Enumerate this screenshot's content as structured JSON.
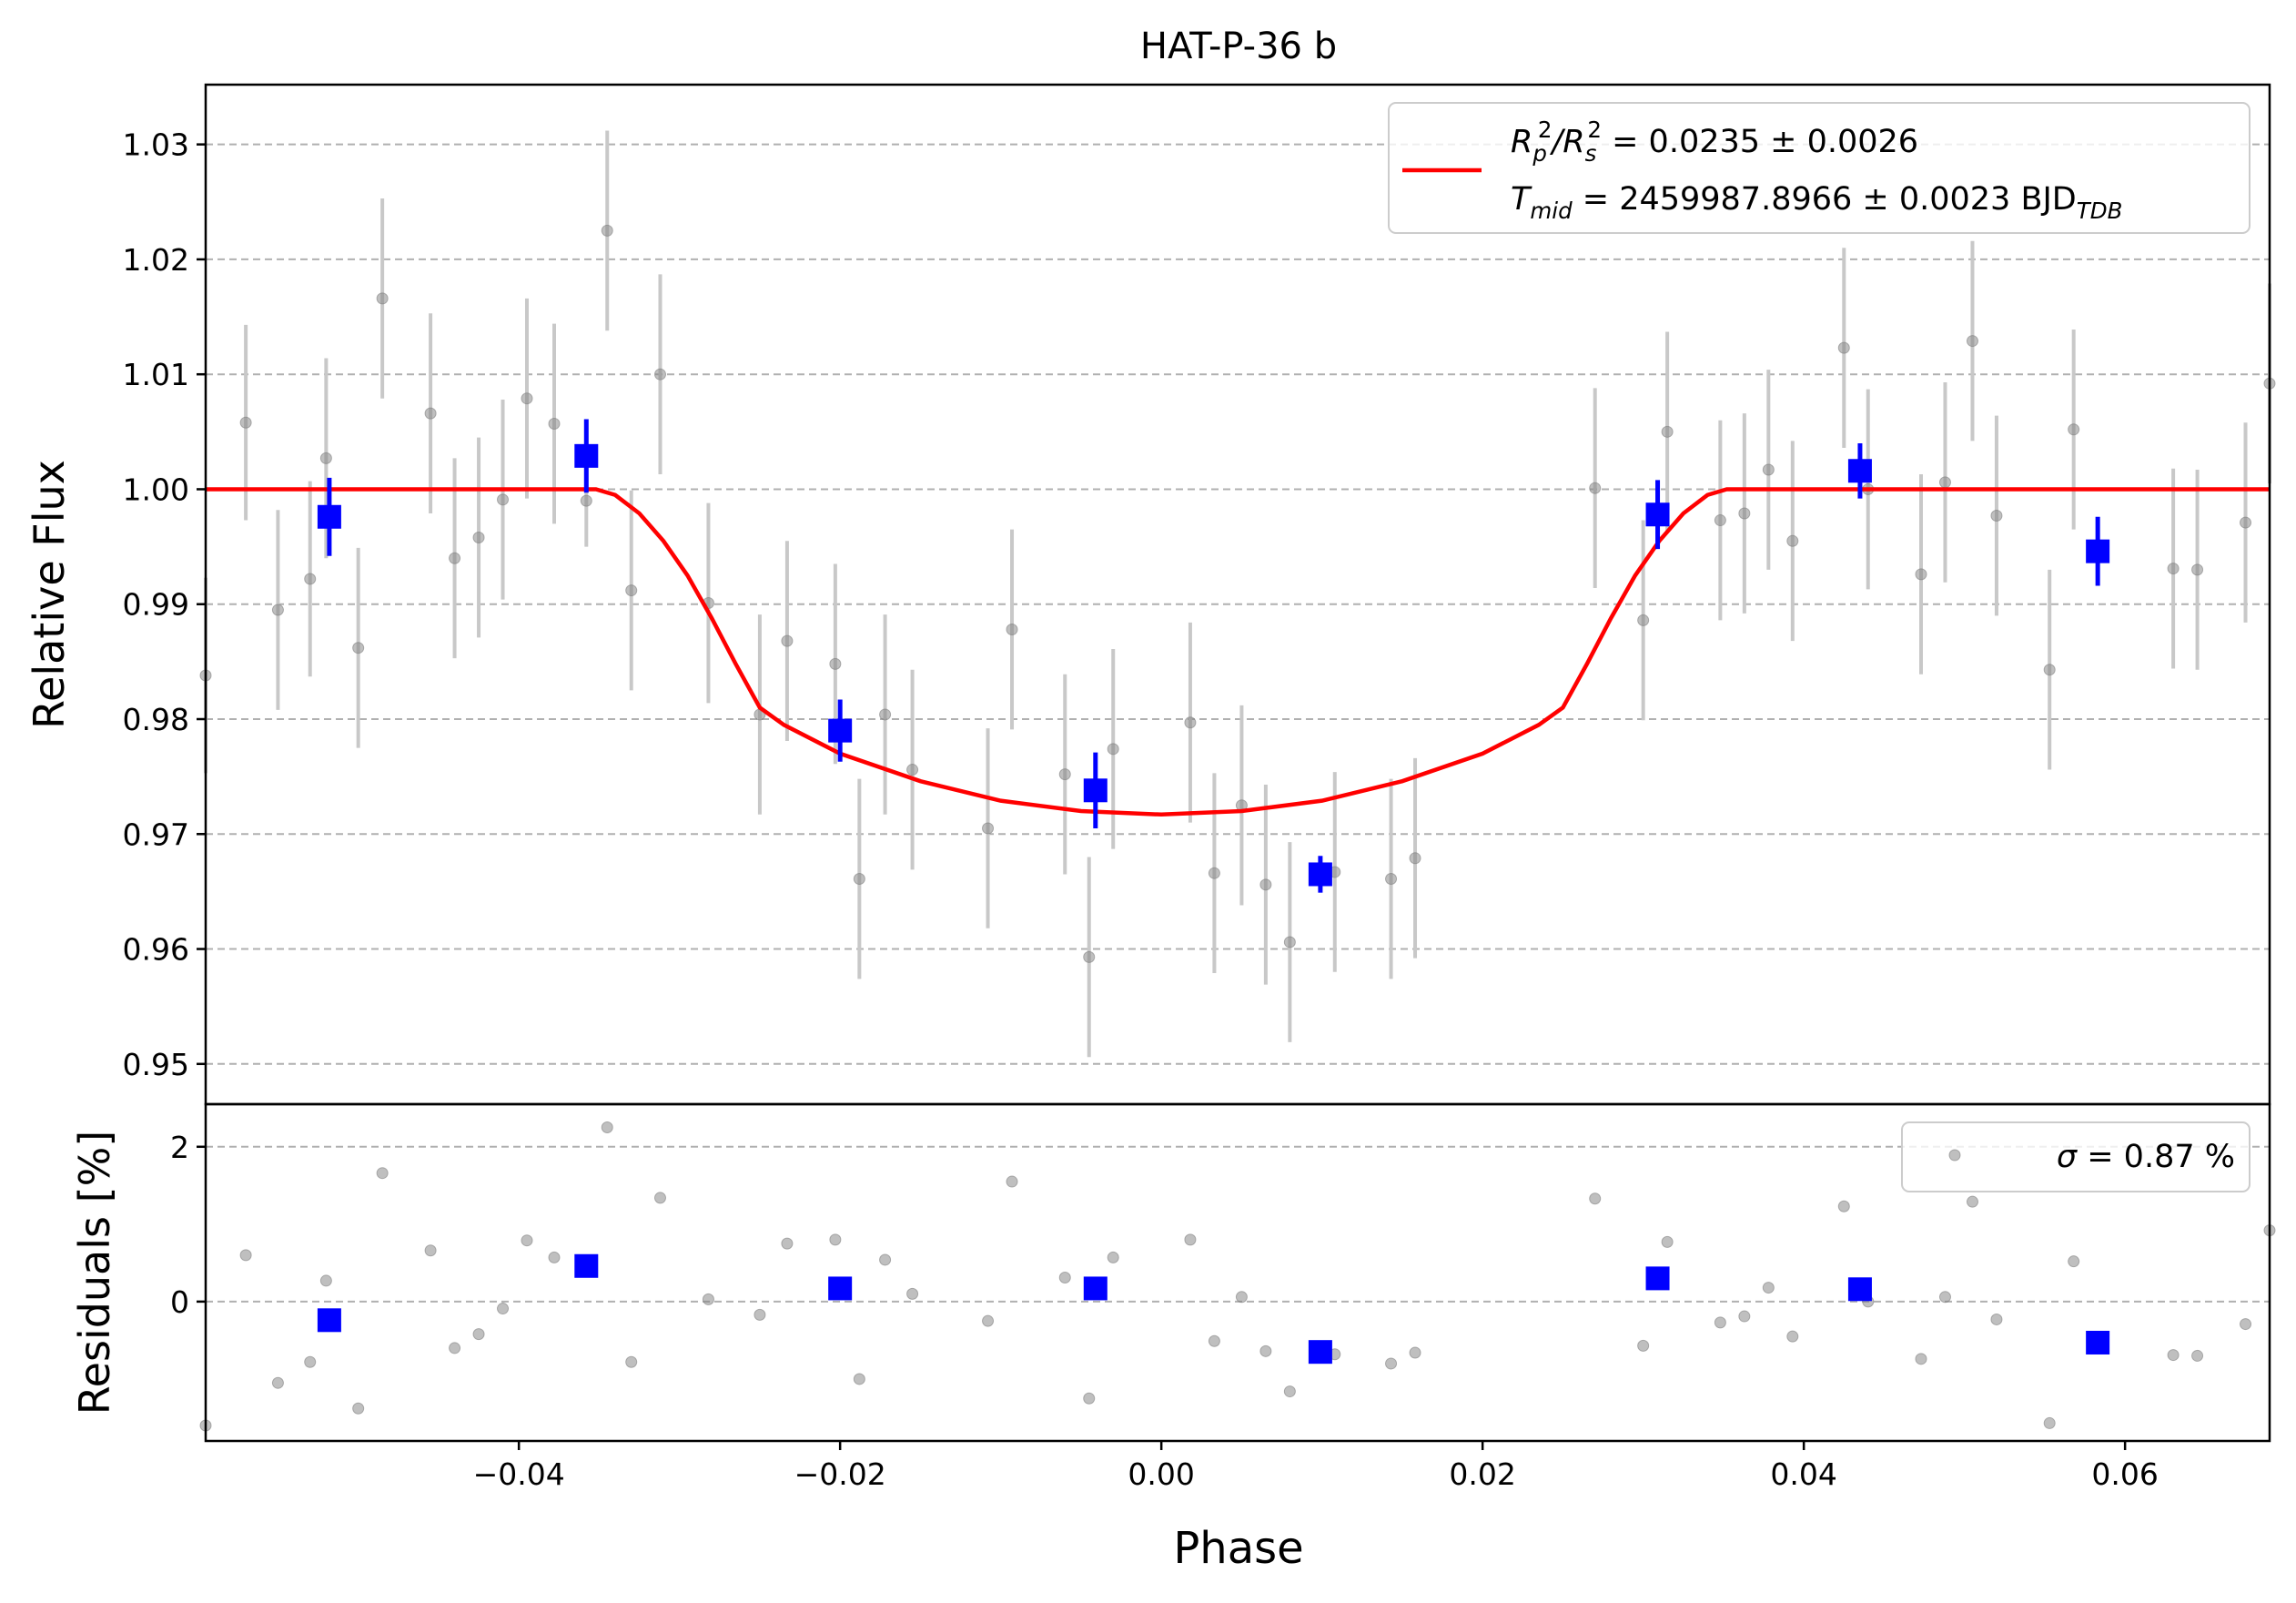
{
  "chart_data": [
    {
      "type": "scatter",
      "title": "HAT-P-36 b",
      "xlabel": "",
      "ylabel": "Relative Flux",
      "xlim": [
        -0.0595,
        0.069
      ],
      "ylim": [
        0.9465,
        1.0352
      ],
      "yticks": [
        0.95,
        0.96,
        0.97,
        0.98,
        0.99,
        1.0,
        1.01,
        1.02,
        1.03
      ],
      "ytick_labels": [
        "0.95",
        "0.96",
        "0.97",
        "0.98",
        "0.99",
        "1.00",
        "1.01",
        "1.02",
        "1.03"
      ],
      "grid": "horizontal dashed",
      "legend_position": "top-right",
      "legend": {
        "line1": {
          "prefix": "R",
          "sub1": "p",
          "sup1": "2",
          "mid": "/R",
          "sub2": "s",
          "sup2": "2",
          "value": " = 0.0235 ± 0.0026"
        },
        "line2": {
          "prefix": "T",
          "sub": "mid",
          "value": " = 2459987.8966 ± 0.0023 BJD",
          "unit_sub": "TDB"
        }
      },
      "colors": {
        "raw": "#a0a0a0",
        "binned": "#0000ff",
        "model": "#ff0000",
        "grid": "#b0b0b0"
      },
      "raw_points": [
        {
          "x": -0.0595,
          "y": 0.9838,
          "err": 0.0085
        },
        {
          "x": -0.057,
          "y": 1.0058,
          "err": 0.0085
        },
        {
          "x": -0.055,
          "y": 0.9895,
          "err": 0.0087
        },
        {
          "x": -0.053,
          "y": 0.9922,
          "err": 0.0085
        },
        {
          "x": -0.052,
          "y": 1.0027,
          "err": 0.0087
        },
        {
          "x": -0.05,
          "y": 0.9862,
          "err": 0.0087
        },
        {
          "x": -0.0485,
          "y": 1.0166,
          "err": 0.0087
        },
        {
          "x": -0.0455,
          "y": 1.0066,
          "err": 0.0087
        },
        {
          "x": -0.044,
          "y": 0.994,
          "err": 0.0087
        },
        {
          "x": -0.0425,
          "y": 0.9958,
          "err": 0.0087
        },
        {
          "x": -0.041,
          "y": 0.9991,
          "err": 0.0087
        },
        {
          "x": -0.0395,
          "y": 1.0079,
          "err": 0.0087
        },
        {
          "x": -0.0378,
          "y": 1.0057,
          "err": 0.0087
        },
        {
          "x": -0.0358,
          "y": 0.999,
          "err": 0.004
        },
        {
          "x": -0.0345,
          "y": 1.0225,
          "err": 0.0087
        },
        {
          "x": -0.033,
          "y": 0.9912,
          "err": 0.0087
        },
        {
          "x": -0.0312,
          "y": 1.01,
          "err": 0.0087
        },
        {
          "x": -0.0282,
          "y": 0.9901,
          "err": 0.0087
        },
        {
          "x": -0.025,
          "y": 0.9804,
          "err": 0.0087
        },
        {
          "x": -0.0233,
          "y": 0.9868,
          "err": 0.0087
        },
        {
          "x": -0.0203,
          "y": 0.9848,
          "err": 0.0087
        },
        {
          "x": -0.0188,
          "y": 0.9661,
          "err": 0.0087
        },
        {
          "x": -0.0172,
          "y": 0.9804,
          "err": 0.0087
        },
        {
          "x": -0.0155,
          "y": 0.9756,
          "err": 0.0087
        },
        {
          "x": -0.0108,
          "y": 0.9705,
          "err": 0.0087
        },
        {
          "x": -0.0093,
          "y": 0.9878,
          "err": 0.0087
        },
        {
          "x": -0.006,
          "y": 0.9752,
          "err": 0.0087
        },
        {
          "x": -0.0045,
          "y": 0.9593,
          "err": 0.0087
        },
        {
          "x": -0.003,
          "y": 0.9774,
          "err": 0.0087
        },
        {
          "x": 0.0018,
          "y": 0.9797,
          "err": 0.0087
        },
        {
          "x": 0.0033,
          "y": 0.9666,
          "err": 0.0087
        },
        {
          "x": 0.005,
          "y": 0.9725,
          "err": 0.0087
        },
        {
          "x": 0.0065,
          "y": 0.9656,
          "err": 0.0087
        },
        {
          "x": 0.008,
          "y": 0.9606,
          "err": 0.0087
        },
        {
          "x": 0.0108,
          "y": 0.9667,
          "err": 0.0087
        },
        {
          "x": 0.0143,
          "y": 0.9661,
          "err": 0.0087
        },
        {
          "x": 0.0158,
          "y": 0.9679,
          "err": 0.0087
        },
        {
          "x": 0.027,
          "y": 1.0001,
          "err": 0.0087
        },
        {
          "x": 0.03,
          "y": 0.9886,
          "err": 0.0087
        },
        {
          "x": 0.0315,
          "y": 1.005,
          "err": 0.0087
        },
        {
          "x": 0.0348,
          "y": 0.9973,
          "err": 0.0087
        },
        {
          "x": 0.0363,
          "y": 0.9979,
          "err": 0.0087
        },
        {
          "x": 0.0378,
          "y": 1.0017,
          "err": 0.0087
        },
        {
          "x": 0.0393,
          "y": 0.9955,
          "err": 0.0087
        },
        {
          "x": 0.0425,
          "y": 1.0123,
          "err": 0.0087
        },
        {
          "x": 0.044,
          "y": 1.0,
          "err": 0.0087
        },
        {
          "x": 0.0473,
          "y": 0.9926,
          "err": 0.0087
        },
        {
          "x": 0.0488,
          "y": 1.0006,
          "err": 0.0087
        },
        {
          "x": 0.0505,
          "y": 1.0129,
          "err": 0.0087
        },
        {
          "x": 0.052,
          "y": 0.9977,
          "err": 0.0087
        },
        {
          "x": 0.0553,
          "y": 0.9843,
          "err": 0.0087
        },
        {
          "x": 0.0568,
          "y": 1.0052,
          "err": 0.0087
        },
        {
          "x": 0.063,
          "y": 0.9931,
          "err": 0.0087
        },
        {
          "x": 0.0645,
          "y": 0.993,
          "err": 0.0087
        },
        {
          "x": 0.0675,
          "y": 0.9971,
          "err": 0.0087
        },
        {
          "x": 0.069,
          "y": 1.0092,
          "err": 0.0087
        }
      ],
      "binned_points": [
        {
          "x": -0.0518,
          "y": 0.9976,
          "err": 0.0034
        },
        {
          "x": -0.0358,
          "y": 1.0029,
          "err": 0.0032
        },
        {
          "x": -0.02,
          "y": 0.979,
          "err": 0.0027
        },
        {
          "x": -0.0041,
          "y": 0.9738,
          "err": 0.0033
        },
        {
          "x": 0.0099,
          "y": 0.9665,
          "err": 0.0016
        },
        {
          "x": 0.0309,
          "y": 0.9978,
          "err": 0.003
        },
        {
          "x": 0.0435,
          "y": 1.0016,
          "err": 0.0024
        },
        {
          "x": 0.0583,
          "y": 0.9946,
          "err": 0.003
        }
      ],
      "model_curve": {
        "x": [
          -0.0595,
          -0.0352,
          -0.034,
          -0.0325,
          -0.031,
          -0.0295,
          -0.028,
          -0.0265,
          -0.025,
          -0.0235,
          -0.02,
          -0.015,
          -0.01,
          -0.005,
          0.0,
          0.005,
          0.01,
          0.015,
          0.02,
          0.0235,
          0.025,
          0.0265,
          0.028,
          0.0295,
          0.031,
          0.0325,
          0.034,
          0.0352,
          0.069
        ],
        "y": [
          1.0,
          1.0,
          0.9995,
          0.9979,
          0.9955,
          0.9925,
          0.9888,
          0.9848,
          0.981,
          0.9795,
          0.977,
          0.9746,
          0.9729,
          0.972,
          0.9717,
          0.972,
          0.9729,
          0.9746,
          0.977,
          0.9795,
          0.981,
          0.9848,
          0.9888,
          0.9925,
          0.9955,
          0.9979,
          0.9995,
          1.0,
          1.0
        ]
      }
    },
    {
      "type": "scatter",
      "title": "",
      "xlabel": "Phase",
      "ylabel": "Residuals [%]",
      "xlim": [
        -0.0595,
        0.069
      ],
      "ylim": [
        -1.8,
        2.55
      ],
      "xticks": [
        -0.04,
        -0.02,
        0.0,
        0.02,
        0.04,
        0.06
      ],
      "xtick_labels": [
        "−0.04",
        "−0.02",
        "0.00",
        "0.02",
        "0.04",
        "0.06"
      ],
      "yticks": [
        0,
        2
      ],
      "ytick_labels": [
        "0",
        "2"
      ],
      "grid": "horizontal dashed",
      "legend_position": "top-right",
      "legend": {
        "symbol": "σ",
        "value": " = 0.87 %"
      },
      "raw_residuals": [
        {
          "x": -0.0595,
          "y": -1.6
        },
        {
          "x": -0.057,
          "y": 0.6
        },
        {
          "x": -0.055,
          "y": -1.05
        },
        {
          "x": -0.053,
          "y": -0.78
        },
        {
          "x": -0.052,
          "y": 0.27
        },
        {
          "x": -0.05,
          "y": -1.38
        },
        {
          "x": -0.0485,
          "y": 1.66
        },
        {
          "x": -0.0455,
          "y": 0.66
        },
        {
          "x": -0.044,
          "y": -0.6
        },
        {
          "x": -0.0425,
          "y": -0.42
        },
        {
          "x": -0.041,
          "y": -0.09
        },
        {
          "x": -0.0395,
          "y": 0.79
        },
        {
          "x": -0.0378,
          "y": 0.57
        },
        {
          "x": -0.0358,
          "y": 0.45
        },
        {
          "x": -0.0345,
          "y": 2.25
        },
        {
          "x": -0.033,
          "y": -0.78
        },
        {
          "x": -0.0312,
          "y": 1.34
        },
        {
          "x": -0.0282,
          "y": 0.03
        },
        {
          "x": -0.025,
          "y": -0.17
        },
        {
          "x": -0.0233,
          "y": 0.75
        },
        {
          "x": -0.0203,
          "y": 0.8
        },
        {
          "x": -0.0188,
          "y": -1.0
        },
        {
          "x": -0.0172,
          "y": 0.54
        },
        {
          "x": -0.0155,
          "y": 0.1
        },
        {
          "x": -0.0108,
          "y": -0.25
        },
        {
          "x": -0.0093,
          "y": 1.55
        },
        {
          "x": -0.006,
          "y": 0.31
        },
        {
          "x": -0.0045,
          "y": -1.25
        },
        {
          "x": -0.003,
          "y": 0.57
        },
        {
          "x": 0.0018,
          "y": 0.8
        },
        {
          "x": 0.0033,
          "y": -0.51
        },
        {
          "x": 0.005,
          "y": 0.06
        },
        {
          "x": 0.0065,
          "y": -0.64
        },
        {
          "x": 0.008,
          "y": -1.16
        },
        {
          "x": 0.0108,
          "y": -0.68
        },
        {
          "x": 0.0143,
          "y": -0.8
        },
        {
          "x": 0.0158,
          "y": -0.66
        },
        {
          "x": 0.027,
          "y": 1.33
        },
        {
          "x": 0.03,
          "y": -0.57
        },
        {
          "x": 0.0315,
          "y": 0.77
        },
        {
          "x": 0.0348,
          "y": -0.27
        },
        {
          "x": 0.0363,
          "y": -0.19
        },
        {
          "x": 0.0378,
          "y": 0.18
        },
        {
          "x": 0.0393,
          "y": -0.45
        },
        {
          "x": 0.0425,
          "y": 1.23
        },
        {
          "x": 0.044,
          "y": 0.0
        },
        {
          "x": 0.0473,
          "y": -0.74
        },
        {
          "x": 0.0488,
          "y": 0.06
        },
        {
          "x": 0.0505,
          "y": 1.29
        },
        {
          "x": 0.052,
          "y": -0.23
        },
        {
          "x": 0.0553,
          "y": -1.57
        },
        {
          "x": 0.0568,
          "y": 0.52
        },
        {
          "x": 0.063,
          "y": -0.69
        },
        {
          "x": 0.0645,
          "y": -0.7
        },
        {
          "x": 0.0675,
          "y": -0.29
        },
        {
          "x": 0.069,
          "y": 0.92
        }
      ],
      "binned_residuals": [
        {
          "x": -0.0518,
          "y": -0.24
        },
        {
          "x": -0.0358,
          "y": 0.46
        },
        {
          "x": -0.02,
          "y": 0.17
        },
        {
          "x": -0.0041,
          "y": 0.17
        },
        {
          "x": 0.0099,
          "y": -0.65
        },
        {
          "x": 0.0309,
          "y": 0.3
        },
        {
          "x": 0.0435,
          "y": 0.16
        },
        {
          "x": 0.0583,
          "y": -0.53
        }
      ]
    }
  ]
}
